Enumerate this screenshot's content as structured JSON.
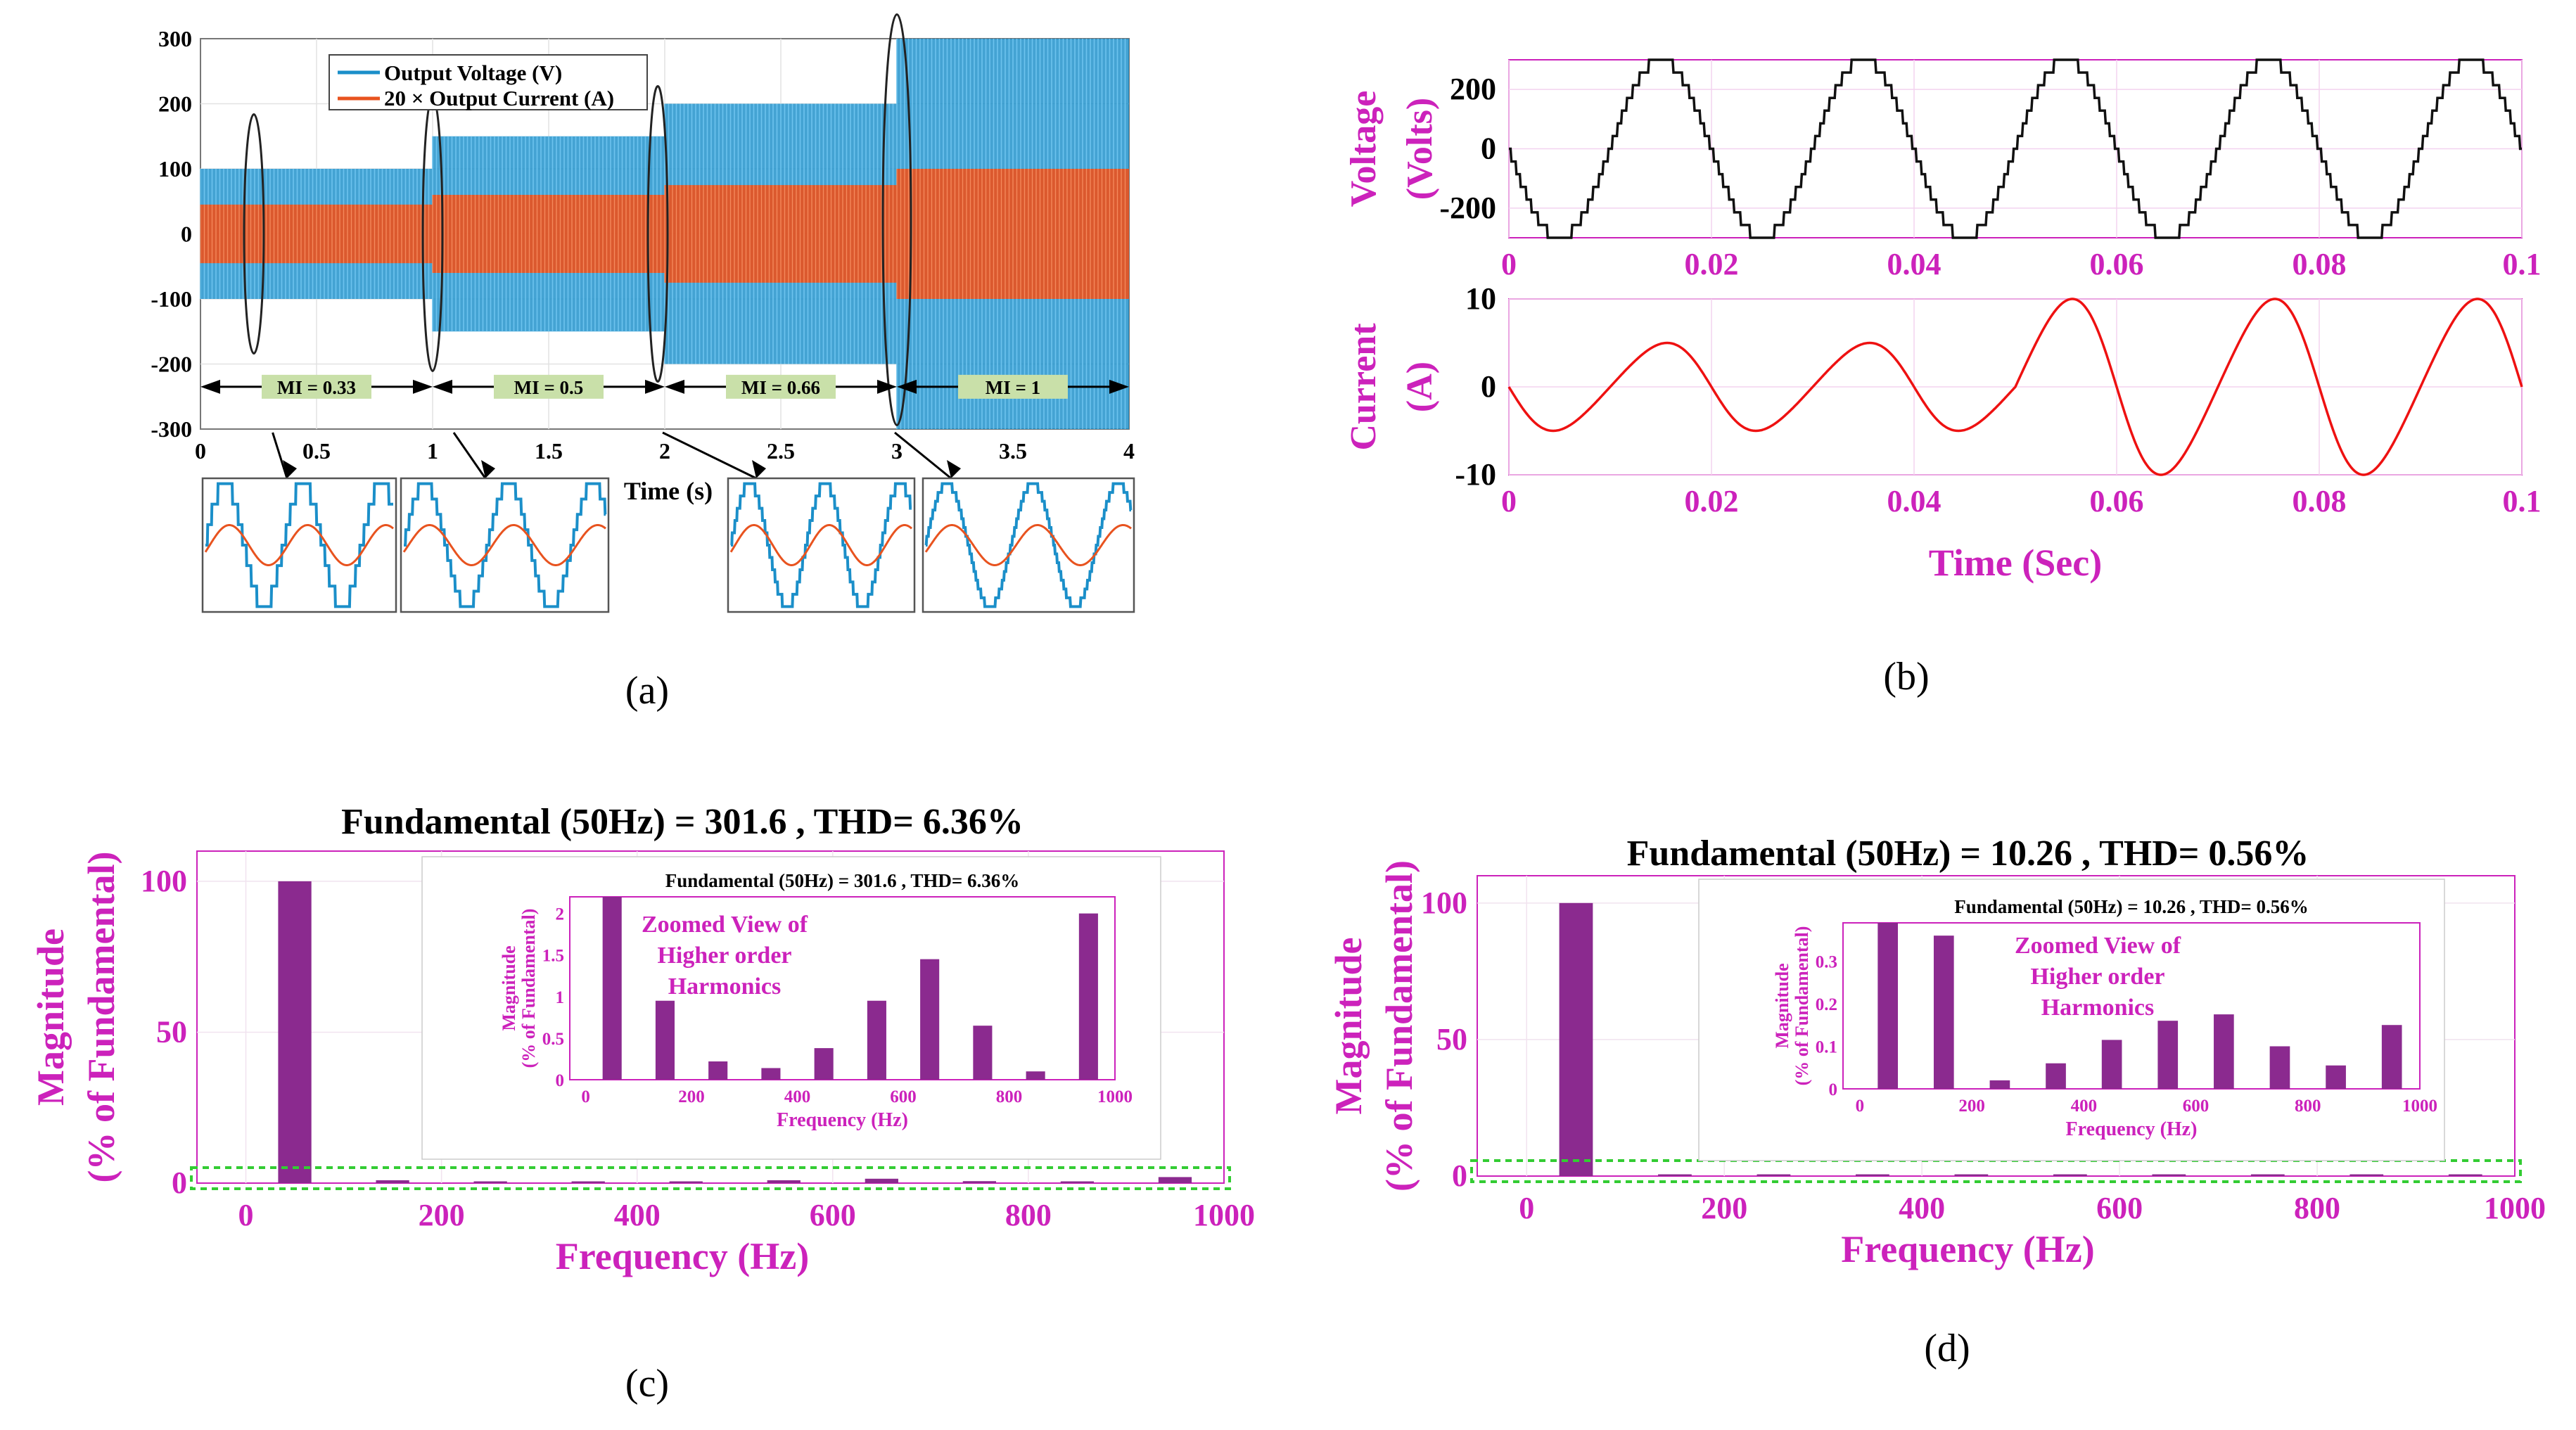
{
  "figure": {
    "panel_labels": [
      "(a)",
      "(b)",
      "(c)",
      "(d)"
    ],
    "colors": {
      "voltage_blue": "#1b8fc9",
      "current_orange": "#e8531f",
      "magenta": "#cc22bb",
      "bar_purple": "#8b2a8f",
      "step_black": "#111111",
      "current_red": "#ee1111",
      "mi_label_bg": "#c9e0a9",
      "dashed_green": "#33cc33"
    }
  },
  "chart_data": [
    {
      "id": "a",
      "type": "line",
      "title": "",
      "xlabel": "Time (s)",
      "ylabel": "",
      "xlim": [
        0,
        4
      ],
      "ylim": [
        -300,
        300
      ],
      "xticks": [
        "0",
        "0.5",
        "1",
        "1.5",
        "2",
        "2.5",
        "3",
        "3.5",
        "4"
      ],
      "yticks": [
        "300",
        "200",
        "100",
        "0",
        "-100",
        "-200",
        "-300"
      ],
      "legend": [
        "Output Voltage (V)",
        "20 × Output Current (A)"
      ],
      "segments": [
        {
          "label": "MI = 0.33",
          "t": [
            0,
            1
          ],
          "voltage_amp": 100,
          "current_amp": 45
        },
        {
          "label": "MI = 0.5",
          "t": [
            1,
            2
          ],
          "voltage_amp": 150,
          "current_amp": 60
        },
        {
          "label": "MI = 0.66",
          "t": [
            2,
            3
          ],
          "voltage_amp": 200,
          "current_amp": 75
        },
        {
          "label": "MI = 1",
          "t": [
            3,
            4
          ],
          "voltage_amp": 300,
          "current_amp": 100
        }
      ],
      "zoom_levels": [
        3,
        4,
        5,
        7
      ]
    },
    {
      "id": "b",
      "type": "line",
      "subplots": [
        {
          "ylabel": "Voltage (Volts)",
          "xlim": [
            0,
            0.1
          ],
          "ylim": [
            -300,
            300
          ],
          "xticks": [
            "0",
            "0.02",
            "0.04",
            "0.06",
            "0.08",
            "0.1"
          ],
          "yticks": [
            "200",
            "0",
            "-200"
          ],
          "peak": 300,
          "levels": 7,
          "frequency_hz": 50
        },
        {
          "ylabel": "Current (A)",
          "xlabel": "Time (Sec)",
          "xlim": [
            0,
            0.1
          ],
          "ylim": [
            -10,
            10
          ],
          "xticks": [
            "0",
            "0.02",
            "0.04",
            "0.06",
            "0.08",
            "0.1"
          ],
          "yticks": [
            "10",
            "0",
            "-10"
          ],
          "amplitude_before": 5,
          "amplitude_after": 10,
          "step_time": 0.05,
          "frequency_hz": 50
        }
      ]
    },
    {
      "id": "c",
      "type": "bar",
      "title": "Fundamental (50Hz) = 301.6 , THD= 6.36%",
      "xlabel": "Frequency (Hz)",
      "ylabel": "Magnitude (% of Fundamental)",
      "xlim": [
        -50,
        1000
      ],
      "ylim": [
        0,
        110
      ],
      "xticks": [
        "0",
        "200",
        "400",
        "600",
        "800",
        "1000"
      ],
      "yticks": [
        "100",
        "50",
        "0"
      ],
      "x": [
        50,
        150,
        250,
        350,
        450,
        550,
        650,
        750,
        850,
        950
      ],
      "values": [
        100,
        0.95,
        0.22,
        0.14,
        0.38,
        0.95,
        1.45,
        0.65,
        0.1,
        2.0
      ],
      "inset": {
        "title": "Fundamental (50Hz) = 301.6 , THD= 6.36%",
        "xlabel": "Frequency (Hz)",
        "ylabel": "Magnitude (% of Fundamental)",
        "annotation": "Zoomed View of Higher order Harmonics",
        "xlim": [
          -30,
          1000
        ],
        "ylim": [
          0,
          2.2
        ],
        "xticks": [
          "0",
          "200",
          "400",
          "600",
          "800",
          "1000"
        ],
        "yticks": [
          "2",
          "1.5",
          "1",
          "0.5",
          "0"
        ]
      }
    },
    {
      "id": "d",
      "type": "bar",
      "title": "Fundamental (50Hz) = 10.26 , THD= 0.56%",
      "xlabel": "Frequency (Hz)",
      "ylabel": "Magnitude (% of Fundamental)",
      "xlim": [
        -50,
        1000
      ],
      "ylim": [
        0,
        110
      ],
      "xticks": [
        "0",
        "200",
        "400",
        "600",
        "800",
        "1000"
      ],
      "yticks": [
        "100",
        "50",
        "0"
      ],
      "x": [
        50,
        150,
        250,
        350,
        450,
        550,
        650,
        750,
        850,
        950
      ],
      "values": [
        100,
        0.36,
        0.02,
        0.06,
        0.115,
        0.16,
        0.175,
        0.1,
        0.055,
        0.15
      ],
      "inset": {
        "title": "Fundamental (50Hz) = 10.26 , THD= 0.56%",
        "xlabel": "Frequency (Hz)",
        "ylabel": "Magnitude (% of Fundamental)",
        "annotation": "Zoomed View of Higher order Harmonics",
        "xlim": [
          -30,
          1000
        ],
        "ylim": [
          0,
          0.39
        ],
        "xticks": [
          "0",
          "200",
          "400",
          "600",
          "800",
          "1000"
        ],
        "yticks": [
          "0.3",
          "0.2",
          "0.1",
          "0"
        ]
      }
    }
  ]
}
